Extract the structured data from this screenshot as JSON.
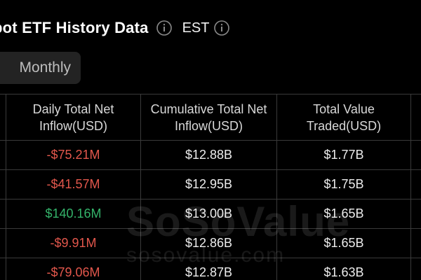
{
  "header": {
    "title": "pot ETF History Data",
    "timezone": "EST"
  },
  "tabs": {
    "monthly_label": "Monthly"
  },
  "table": {
    "headers": [
      "Daily Total Net Inflow(USD)",
      "Cumulative Total Net Inflow(USD)",
      "Total Value Traded(USD)"
    ],
    "rows": [
      {
        "daily": "-$75.21M",
        "cumulative": "$12.88B",
        "traded": "$1.77B",
        "status": "negative"
      },
      {
        "daily": "-$41.57M",
        "cumulative": "$12.95B",
        "traded": "$1.75B",
        "status": "negative"
      },
      {
        "daily": "$140.16M",
        "cumulative": "$13.00B",
        "traded": "$1.65B",
        "status": "positive"
      },
      {
        "daily": "-$9.91M",
        "cumulative": "$12.86B",
        "traded": "$1.65B",
        "status": "negative"
      },
      {
        "daily": "-$79.06M",
        "cumulative": "$12.87B",
        "traded": "$1.63B",
        "status": "negative"
      }
    ]
  },
  "watermark": {
    "logo_text": "SoSoValue",
    "url_text": "sosovalue.com"
  },
  "colors": {
    "background": "#000000",
    "negative": "#e2574c",
    "positive": "#34b36a",
    "grid": "#3a3a3a"
  },
  "icons": {
    "title_info": "info-icon",
    "timezone_info": "info-icon"
  }
}
